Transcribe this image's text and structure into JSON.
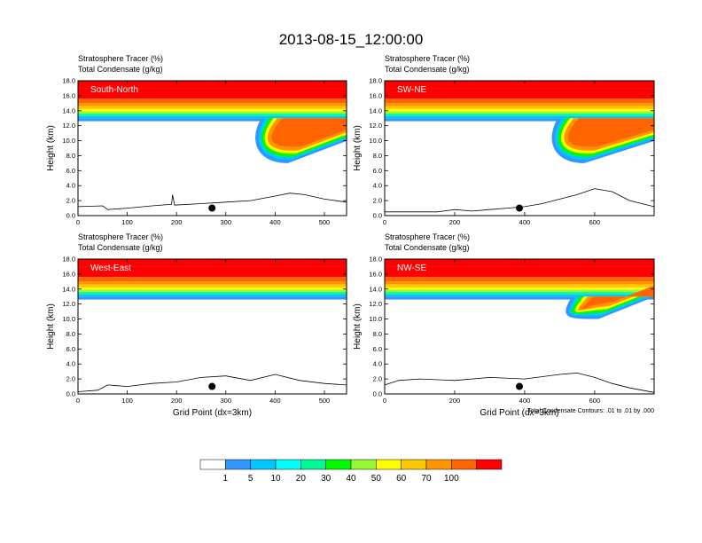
{
  "title": "2013-08-15_12:00:00",
  "footnote": "Total Condensate Contours: .01 to .01 by .000",
  "colorbar": {
    "labels": [
      "1",
      "5",
      "10",
      "20",
      "30",
      "40",
      "50",
      "60",
      "70",
      "100"
    ],
    "colors": [
      "#ffffff",
      "#3296ff",
      "#00c8ff",
      "#00ffff",
      "#00fa96",
      "#00fa00",
      "#96fa32",
      "#ffff00",
      "#ffc800",
      "#ff9600",
      "#ff6400",
      "#ff0000"
    ]
  },
  "chart_data": [
    {
      "type": "contour",
      "panel_label": "South-North",
      "header_line1": "Stratosphere Tracer   (%)",
      "header_line2": "Total Condensate   (g/kg)",
      "ylabel": "Height (km)",
      "xlabel": "",
      "xlim": [
        0,
        545
      ],
      "ylim": [
        0,
        18
      ],
      "xticks": [
        0,
        100,
        200,
        300,
        400,
        500
      ],
      "yticks": [
        "0.0",
        "2.0",
        "4.0",
        "6.0",
        "8.0",
        "10.0",
        "12.0",
        "14.0",
        "16.0",
        "18.0"
      ],
      "marker_x": 272,
      "terrain": [
        [
          0,
          1.2
        ],
        [
          50,
          1.3
        ],
        [
          60,
          0.8
        ],
        [
          100,
          1.0
        ],
        [
          150,
          1.3
        ],
        [
          190,
          1.5
        ],
        [
          192,
          2.8
        ],
        [
          196,
          1.4
        ],
        [
          250,
          1.6
        ],
        [
          300,
          1.8
        ],
        [
          350,
          2.0
        ],
        [
          400,
          2.6
        ],
        [
          430,
          3.0
        ],
        [
          460,
          2.8
        ],
        [
          500,
          2.2
        ],
        [
          545,
          1.8
        ]
      ],
      "tropopause_km": 13.0,
      "intrusion": {
        "x_from": 390,
        "bottom_km": 7.0
      }
    },
    {
      "type": "contour",
      "panel_label": "SW-NE",
      "header_line1": "Stratosphere Tracer   (%)",
      "header_line2": "Total Condensate   (g/kg)",
      "ylabel": "Height (km)",
      "xlabel": "",
      "xlim": [
        0,
        770
      ],
      "ylim": [
        0,
        18
      ],
      "xticks": [
        0,
        200,
        400,
        600
      ],
      "yticks": [
        "0.0",
        "2.0",
        "4.0",
        "6.0",
        "8.0",
        "10.0",
        "12.0",
        "14.0",
        "16.0",
        "18.0"
      ],
      "marker_x": 385,
      "terrain": [
        [
          0,
          0.5
        ],
        [
          150,
          0.5
        ],
        [
          200,
          0.8
        ],
        [
          250,
          0.6
        ],
        [
          300,
          0.8
        ],
        [
          350,
          1.0
        ],
        [
          400,
          1.2
        ],
        [
          450,
          1.6
        ],
        [
          500,
          2.2
        ],
        [
          550,
          2.8
        ],
        [
          600,
          3.6
        ],
        [
          650,
          3.2
        ],
        [
          700,
          2.0
        ],
        [
          770,
          1.2
        ]
      ],
      "tropopause_km": 13.0,
      "intrusion": {
        "x_from": 520,
        "bottom_km": 7.0
      }
    },
    {
      "type": "contour",
      "panel_label": "West-East",
      "header_line1": "Stratosphere Tracer   (%)",
      "header_line2": "Total Condensate   (g/kg)",
      "ylabel": "Height (km)",
      "xlabel": "Grid Point (dx=3km)",
      "xlim": [
        0,
        545
      ],
      "ylim": [
        0,
        18
      ],
      "xticks": [
        0,
        100,
        200,
        300,
        400,
        500
      ],
      "yticks": [
        "0.0",
        "2.0",
        "4.0",
        "6.0",
        "8.0",
        "10.0",
        "12.0",
        "14.0",
        "16.0",
        "18.0"
      ],
      "marker_x": 272,
      "terrain": [
        [
          0,
          0.3
        ],
        [
          40,
          0.5
        ],
        [
          60,
          1.2
        ],
        [
          100,
          1.0
        ],
        [
          150,
          1.4
        ],
        [
          200,
          1.6
        ],
        [
          250,
          2.2
        ],
        [
          300,
          2.4
        ],
        [
          350,
          1.8
        ],
        [
          400,
          2.6
        ],
        [
          450,
          1.8
        ],
        [
          500,
          1.4
        ],
        [
          545,
          1.2
        ]
      ],
      "tropopause_km": 13.0,
      "intrusion": null
    },
    {
      "type": "contour",
      "panel_label": "NW-SE",
      "header_line1": "Stratosphere Tracer   (%)",
      "header_line2": "Total Condensate   (g/kg)",
      "ylabel": "Height (km)",
      "xlabel": "Grid Point (dx=3km)",
      "xlim": [
        0,
        770
      ],
      "ylim": [
        0,
        18
      ],
      "xticks": [
        0,
        200,
        400,
        600
      ],
      "yticks": [
        "0.0",
        "2.0",
        "4.0",
        "6.0",
        "8.0",
        "10.0",
        "12.0",
        "14.0",
        "16.0",
        "18.0"
      ],
      "marker_x": 385,
      "terrain": [
        [
          0,
          1.2
        ],
        [
          40,
          1.8
        ],
        [
          100,
          2.0
        ],
        [
          200,
          1.8
        ],
        [
          300,
          2.2
        ],
        [
          400,
          2.0
        ],
        [
          500,
          2.6
        ],
        [
          550,
          2.8
        ],
        [
          600,
          2.2
        ],
        [
          650,
          1.4
        ],
        [
          700,
          0.8
        ],
        [
          770,
          0.2
        ]
      ],
      "tropopause_km": 13.0,
      "intrusion": {
        "x_from": 560,
        "bottom_km": 10.0
      }
    }
  ]
}
